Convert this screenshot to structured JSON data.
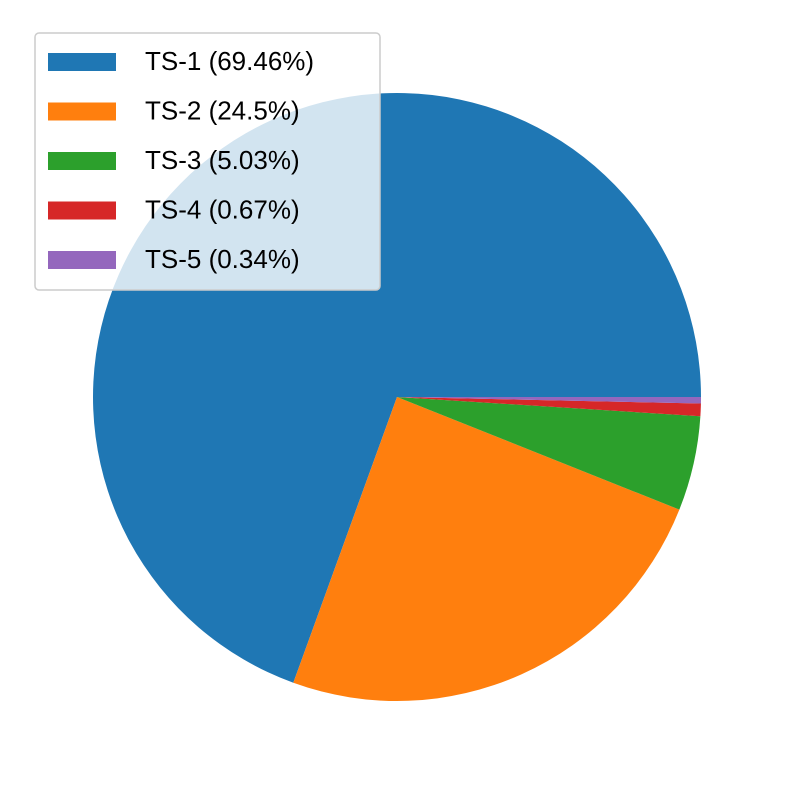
{
  "chart_data": {
    "type": "pie",
    "categories": [
      "TS-1 (69.46%)",
      "TS-2 (24.5%)",
      "TS-3 (5.03%)",
      "TS-4 (0.67%)",
      "TS-5 (0.34%)"
    ],
    "values": [
      69.46,
      24.5,
      5.03,
      0.67,
      0.34
    ],
    "colors": [
      "#1f77b4",
      "#ff7f0e",
      "#2ca02c",
      "#d62728",
      "#9467bd"
    ],
    "legend": "upper left"
  }
}
